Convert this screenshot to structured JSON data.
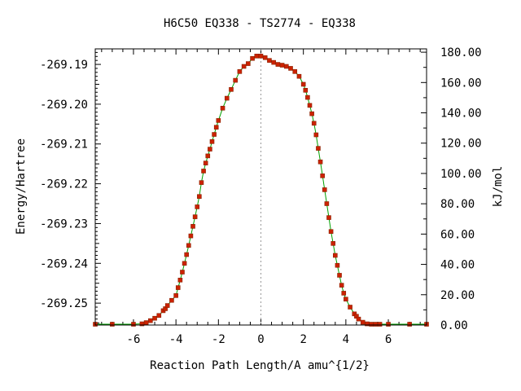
{
  "chart_data": {
    "type": "line",
    "title": "H6C50   EQ338 - TS2774 - EQ338",
    "xlabel": "Reaction Path Length/A amu^{1/2}",
    "ylabel": "Energy/Hartree",
    "y2label": "kJ/mol",
    "xlim": [
      -7.8,
      7.8
    ],
    "ylim": [
      -269.2555,
      -269.1861
    ],
    "y2lim": [
      0.0,
      182.2
    ],
    "xticks": [
      -6,
      -4,
      -2,
      0,
      2,
      4,
      6
    ],
    "xtick_labels": [
      "-6",
      "-4",
      "-2",
      "0",
      "2",
      "4",
      "6"
    ],
    "yticks": [
      -269.19,
      -269.2,
      -269.21,
      -269.22,
      -269.23,
      -269.24,
      -269.25
    ],
    "ytick_labels": [
      "-269.19",
      "-269.20",
      "-269.21",
      "-269.22",
      "-269.23",
      "-269.24",
      "-269.25"
    ],
    "y2ticks": [
      0,
      20,
      40,
      60,
      80,
      100,
      120,
      140,
      160,
      180
    ],
    "y2tick_labels": [
      "0.00",
      "20.00",
      "40.00",
      "60.00",
      "80.00",
      "100.00",
      "120.00",
      "140.00",
      "160.00",
      "180.00"
    ],
    "grid": false,
    "vline_x": 0,
    "series": [
      {
        "color": "#00a000",
        "marker_color": "#cc2200",
        "x": [
          -7.8,
          -7.0,
          -6.0,
          -5.6,
          -5.4,
          -5.2,
          -5.0,
          -4.8,
          -4.6,
          -4.5,
          -4.4,
          -4.2,
          -4.0,
          -3.9,
          -3.8,
          -3.7,
          -3.6,
          -3.5,
          -3.4,
          -3.3,
          -3.2,
          -3.1,
          -3.0,
          -2.9,
          -2.8,
          -2.7,
          -2.6,
          -2.5,
          -2.4,
          -2.3,
          -2.2,
          -2.1,
          -2.0,
          -1.8,
          -1.6,
          -1.4,
          -1.2,
          -1.0,
          -0.8,
          -0.6,
          -0.4,
          -0.2,
          0.0,
          0.2,
          0.4,
          0.6,
          0.8,
          1.0,
          1.2,
          1.4,
          1.6,
          1.8,
          2.0,
          2.1,
          2.2,
          2.3,
          2.4,
          2.5,
          2.6,
          2.7,
          2.8,
          2.9,
          3.0,
          3.1,
          3.2,
          3.3,
          3.4,
          3.5,
          3.6,
          3.7,
          3.8,
          3.9,
          4.0,
          4.2,
          4.4,
          4.5,
          4.6,
          4.8,
          5.0,
          5.2,
          5.4,
          5.6,
          6.0,
          7.0,
          7.8
        ],
        "y": [
          -269.2553,
          -269.2553,
          -269.2553,
          -269.2552,
          -269.2549,
          -269.2544,
          -269.2538,
          -269.2531,
          -269.2519,
          -269.2514,
          -269.2506,
          -269.2493,
          -269.2481,
          -269.2461,
          -269.2442,
          -269.2422,
          -269.24,
          -269.2378,
          -269.2355,
          -269.2331,
          -269.2307,
          -269.2283,
          -269.2258,
          -269.2232,
          -269.2197,
          -269.2168,
          -269.2148,
          -269.213,
          -269.2113,
          -269.2094,
          -269.2076,
          -269.2058,
          -269.2041,
          -269.201,
          -269.1985,
          -269.1963,
          -269.194,
          -269.1918,
          -269.1905,
          -269.1898,
          -269.1885,
          -269.1879,
          -269.1879,
          -269.1883,
          -269.189,
          -269.1895,
          -269.19,
          -269.1902,
          -269.1905,
          -269.191,
          -269.1918,
          -269.193,
          -269.195,
          -269.1965,
          -269.1983,
          -269.2003,
          -269.2024,
          -269.2048,
          -269.2077,
          -269.2111,
          -269.2145,
          -269.218,
          -269.2215,
          -269.225,
          -269.2285,
          -269.232,
          -269.235,
          -269.238,
          -269.2405,
          -269.243,
          -269.2455,
          -269.2475,
          -269.249,
          -269.251,
          -269.2527,
          -269.2533,
          -269.254,
          -269.2548,
          -269.2552,
          -269.2553,
          -269.2553,
          -269.2553,
          -269.2553,
          -269.2553,
          -269.2553
        ]
      }
    ]
  }
}
